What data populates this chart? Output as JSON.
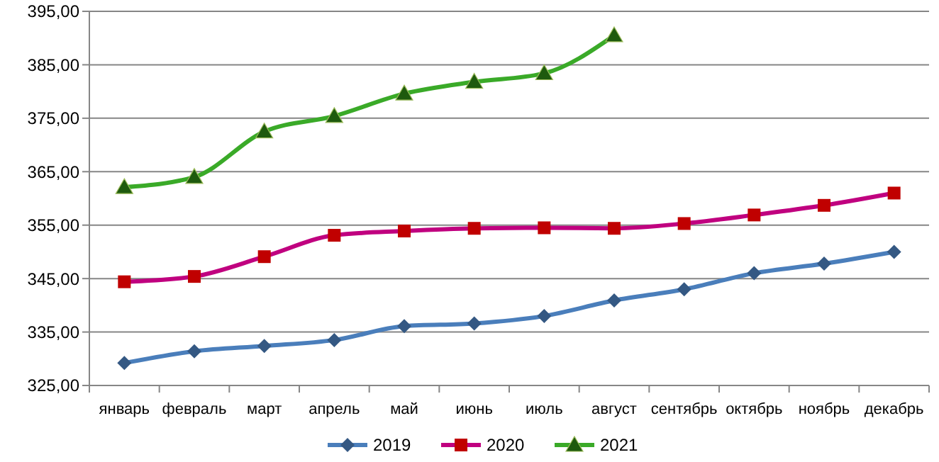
{
  "chart_data": {
    "type": "line",
    "categories": [
      "январь",
      "февраль",
      "март",
      "апрель",
      "май",
      "июнь",
      "июль",
      "август",
      "сентябрь",
      "октябрь",
      "ноябрь",
      "декабрь"
    ],
    "series": [
      {
        "name": "2019",
        "color": "#4a7ebb",
        "marker": "diamond",
        "values": [
          329.2,
          331.4,
          332.4,
          333.5,
          336.1,
          336.6,
          338.0,
          340.9,
          343.0,
          346.0,
          347.8,
          350.0
        ]
      },
      {
        "name": "2020",
        "color": "#c0007f",
        "marker": "square",
        "values": [
          344.4,
          345.4,
          349.1,
          353.1,
          353.9,
          354.4,
          354.5,
          354.4,
          355.3,
          356.9,
          358.7,
          361.0
        ]
      },
      {
        "name": "2021",
        "color": "#3aaa28",
        "marker": "triangle",
        "values": [
          362.1,
          364.0,
          372.5,
          375.4,
          379.6,
          381.8,
          383.4,
          390.5,
          null,
          null,
          null,
          null
        ]
      }
    ],
    "ylim": [
      325,
      395
    ],
    "yticks": [
      {
        "value": 325,
        "label": "325,00"
      },
      {
        "value": 335,
        "label": "335,00"
      },
      {
        "value": 345,
        "label": "345,00"
      },
      {
        "value": 355,
        "label": "355,00"
      },
      {
        "value": 365,
        "label": "365,00"
      },
      {
        "value": 375,
        "label": "375,00"
      },
      {
        "value": 385,
        "label": "385,00"
      },
      {
        "value": 395,
        "label": "395,00"
      }
    ],
    "grid": "y",
    "legend": "bottom",
    "line_style": "solid"
  }
}
